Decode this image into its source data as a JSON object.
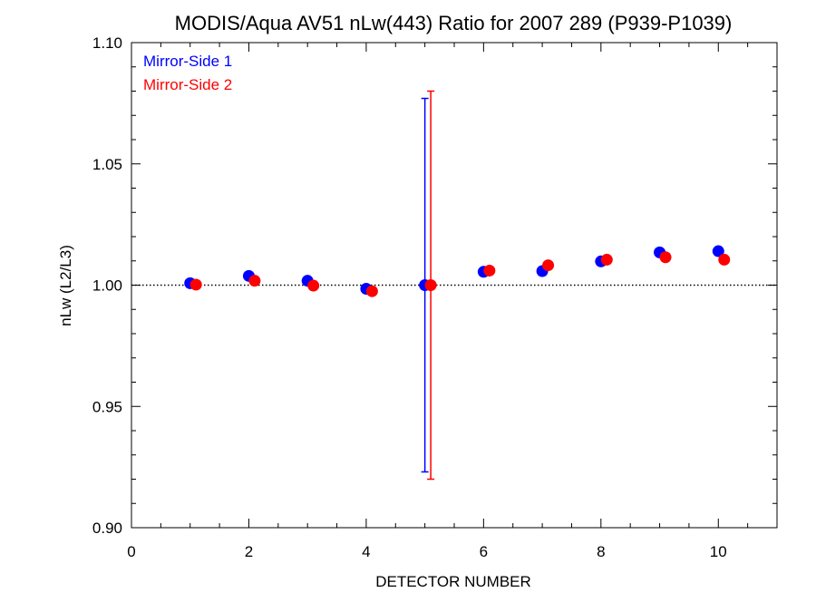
{
  "chart_data": {
    "type": "scatter",
    "title": "MODIS/Aqua AV51 nLw(443) Ratio for 2007 289 (P939-P1039)",
    "xlabel": "DETECTOR NUMBER",
    "ylabel": "nLw (L2/L3)",
    "xlim": [
      0,
      11
    ],
    "ylim": [
      0.9,
      1.1
    ],
    "x_ticks": [
      0,
      2,
      4,
      6,
      8,
      10
    ],
    "x_tick_labels": [
      "0",
      "2",
      "4",
      "6",
      "8",
      "10"
    ],
    "y_ticks": [
      0.9,
      0.95,
      1.0,
      1.05,
      1.1
    ],
    "y_tick_labels": [
      "0.90",
      "0.95",
      "1.00",
      "1.05",
      "1.10"
    ],
    "reference_line": {
      "y": 1.0,
      "style": "dotted"
    },
    "legend_position": "top-left",
    "series": [
      {
        "name": "Mirror-Side 1",
        "color": "#0000ff",
        "x": [
          1,
          2,
          3,
          4,
          5,
          6,
          7,
          8,
          9,
          10
        ],
        "y": [
          1.0008,
          1.0038,
          1.0018,
          0.9985,
          1.0,
          1.0055,
          1.0058,
          1.0098,
          1.0135,
          1.014
        ],
        "error_bars": [
          {
            "x": 5,
            "low": 0.923,
            "high": 1.077
          }
        ]
      },
      {
        "name": "Mirror-Side 2",
        "color": "#ff0000",
        "x": [
          1.1,
          2.1,
          3.1,
          4.1,
          5.1,
          6.1,
          7.1,
          8.1,
          9.1,
          10.1
        ],
        "y": [
          1.0002,
          1.0018,
          0.9998,
          0.9975,
          1.0,
          1.006,
          1.0082,
          1.0105,
          1.0115,
          1.0105
        ],
        "error_bars": [
          {
            "x": 5.1,
            "low": 0.92,
            "high": 1.08
          }
        ]
      }
    ]
  }
}
